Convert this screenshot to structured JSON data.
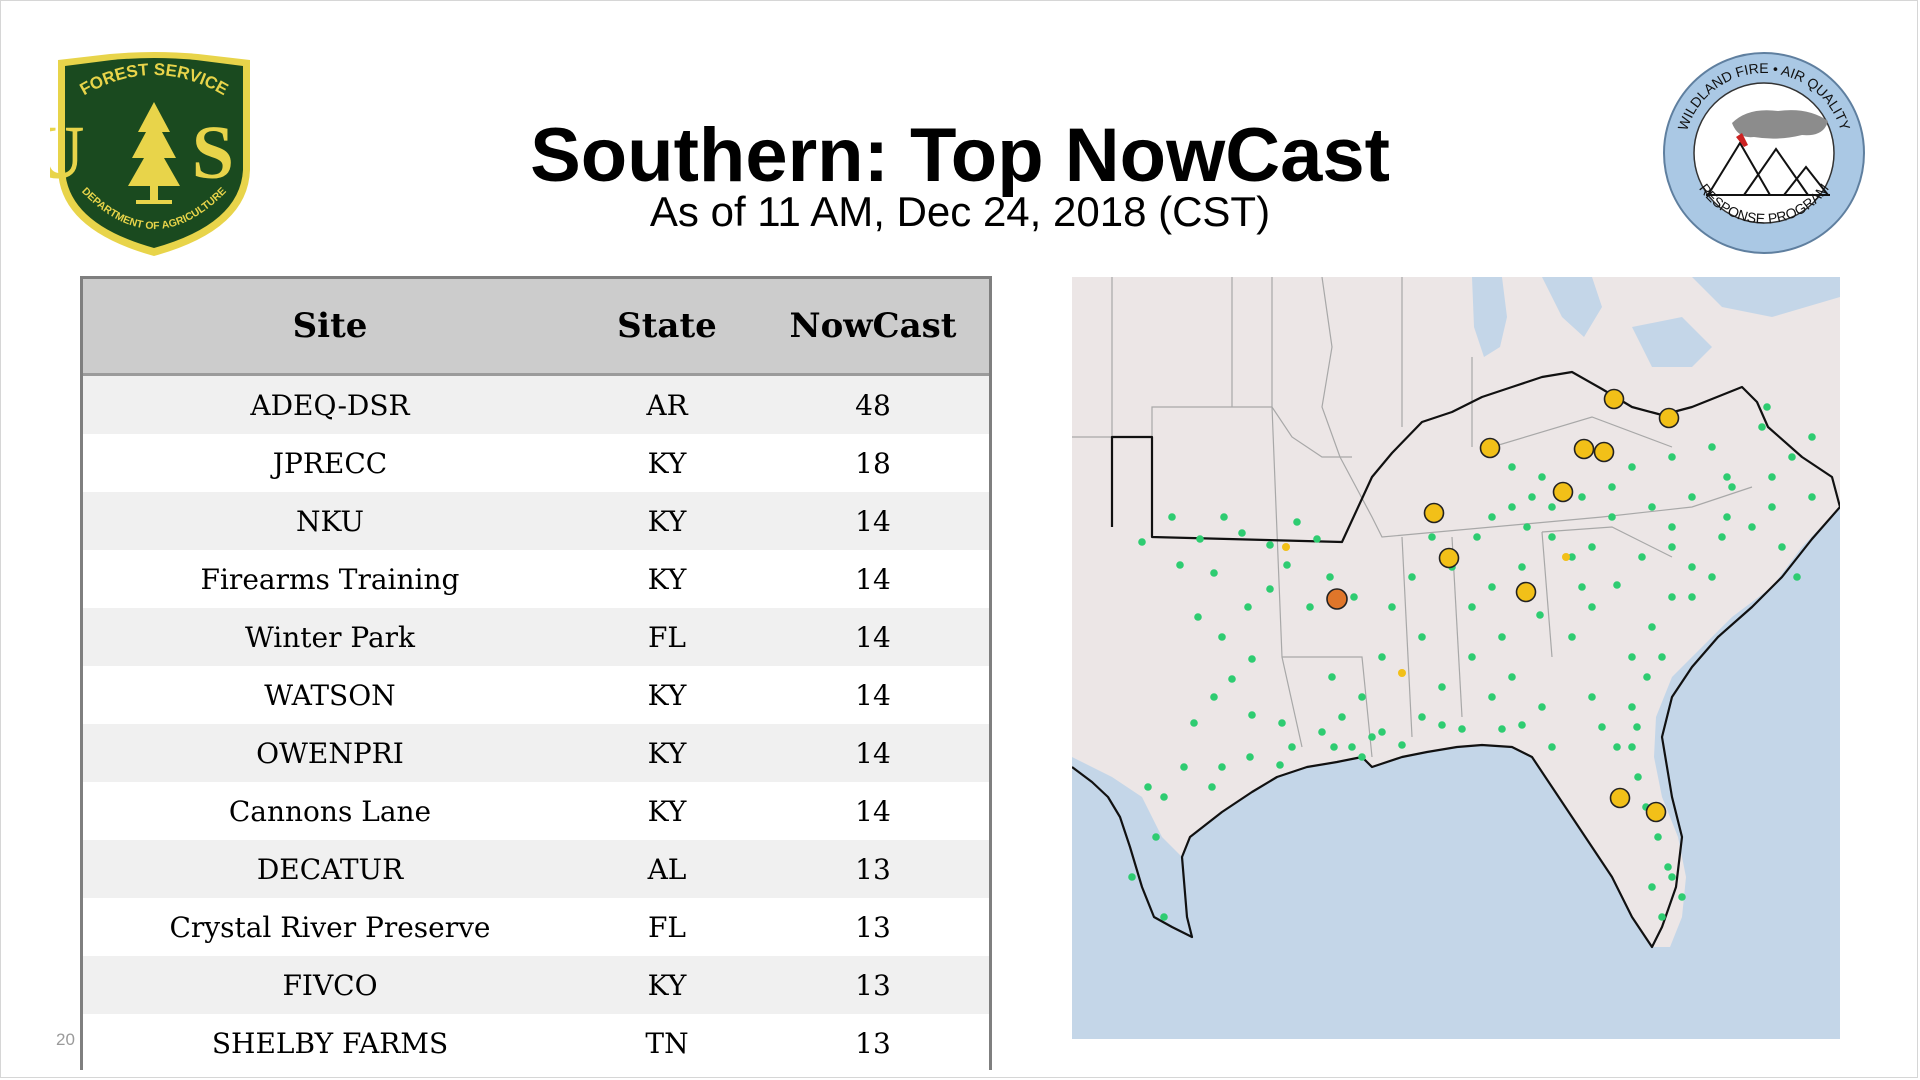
{
  "slide": {
    "title": "Southern: Top NowCast",
    "subtitle": "As of 11 AM, Dec 24, 2018 (CST)",
    "page_number": "20"
  },
  "logos": {
    "forest_service": {
      "top_text": "FOREST SERVICE",
      "letters": "U S",
      "bottom_text": "DEPARTMENT OF AGRICULTURE",
      "colors": {
        "shield": "#1a4a1f",
        "gold": "#e8d44a"
      }
    },
    "wildland_fire": {
      "ring_top": "WILDLAND FIRE • AIR QUALITY",
      "ring_bottom": "RESPONSE PROGRAM",
      "colors": {
        "ring": "#aac8e4",
        "smoke": "#8c8c8c",
        "flame": "#cc2222"
      }
    }
  },
  "table": {
    "headers": {
      "site": "Site",
      "state": "State",
      "nowcast": "NowCast"
    },
    "rows": [
      {
        "site": "ADEQ-DSR",
        "state": "AR",
        "nowcast": "48"
      },
      {
        "site": "JPRECC",
        "state": "KY",
        "nowcast": "18"
      },
      {
        "site": "NKU",
        "state": "KY",
        "nowcast": "14"
      },
      {
        "site": "Firearms Training",
        "state": "KY",
        "nowcast": "14"
      },
      {
        "site": "Winter Park",
        "state": "FL",
        "nowcast": "14"
      },
      {
        "site": "WATSON",
        "state": "KY",
        "nowcast": "14"
      },
      {
        "site": "OWENPRI",
        "state": "KY",
        "nowcast": "14"
      },
      {
        "site": "Cannons Lane",
        "state": "KY",
        "nowcast": "14"
      },
      {
        "site": "DECATUR",
        "state": "AL",
        "nowcast": "13"
      },
      {
        "site": "Crystal River Preserve",
        "state": "FL",
        "nowcast": "13"
      },
      {
        "site": "FIVCO",
        "state": "KY",
        "nowcast": "13"
      },
      {
        "site": "SHELBY FARMS",
        "state": "TN",
        "nowcast": "13"
      }
    ]
  },
  "map": {
    "colors": {
      "land": "#ece6e6",
      "water": "#c4d6e8",
      "good": "#2ecc71",
      "moderate": "#f2c018",
      "usg": "#e0762a",
      "outline": "#111111"
    }
  }
}
